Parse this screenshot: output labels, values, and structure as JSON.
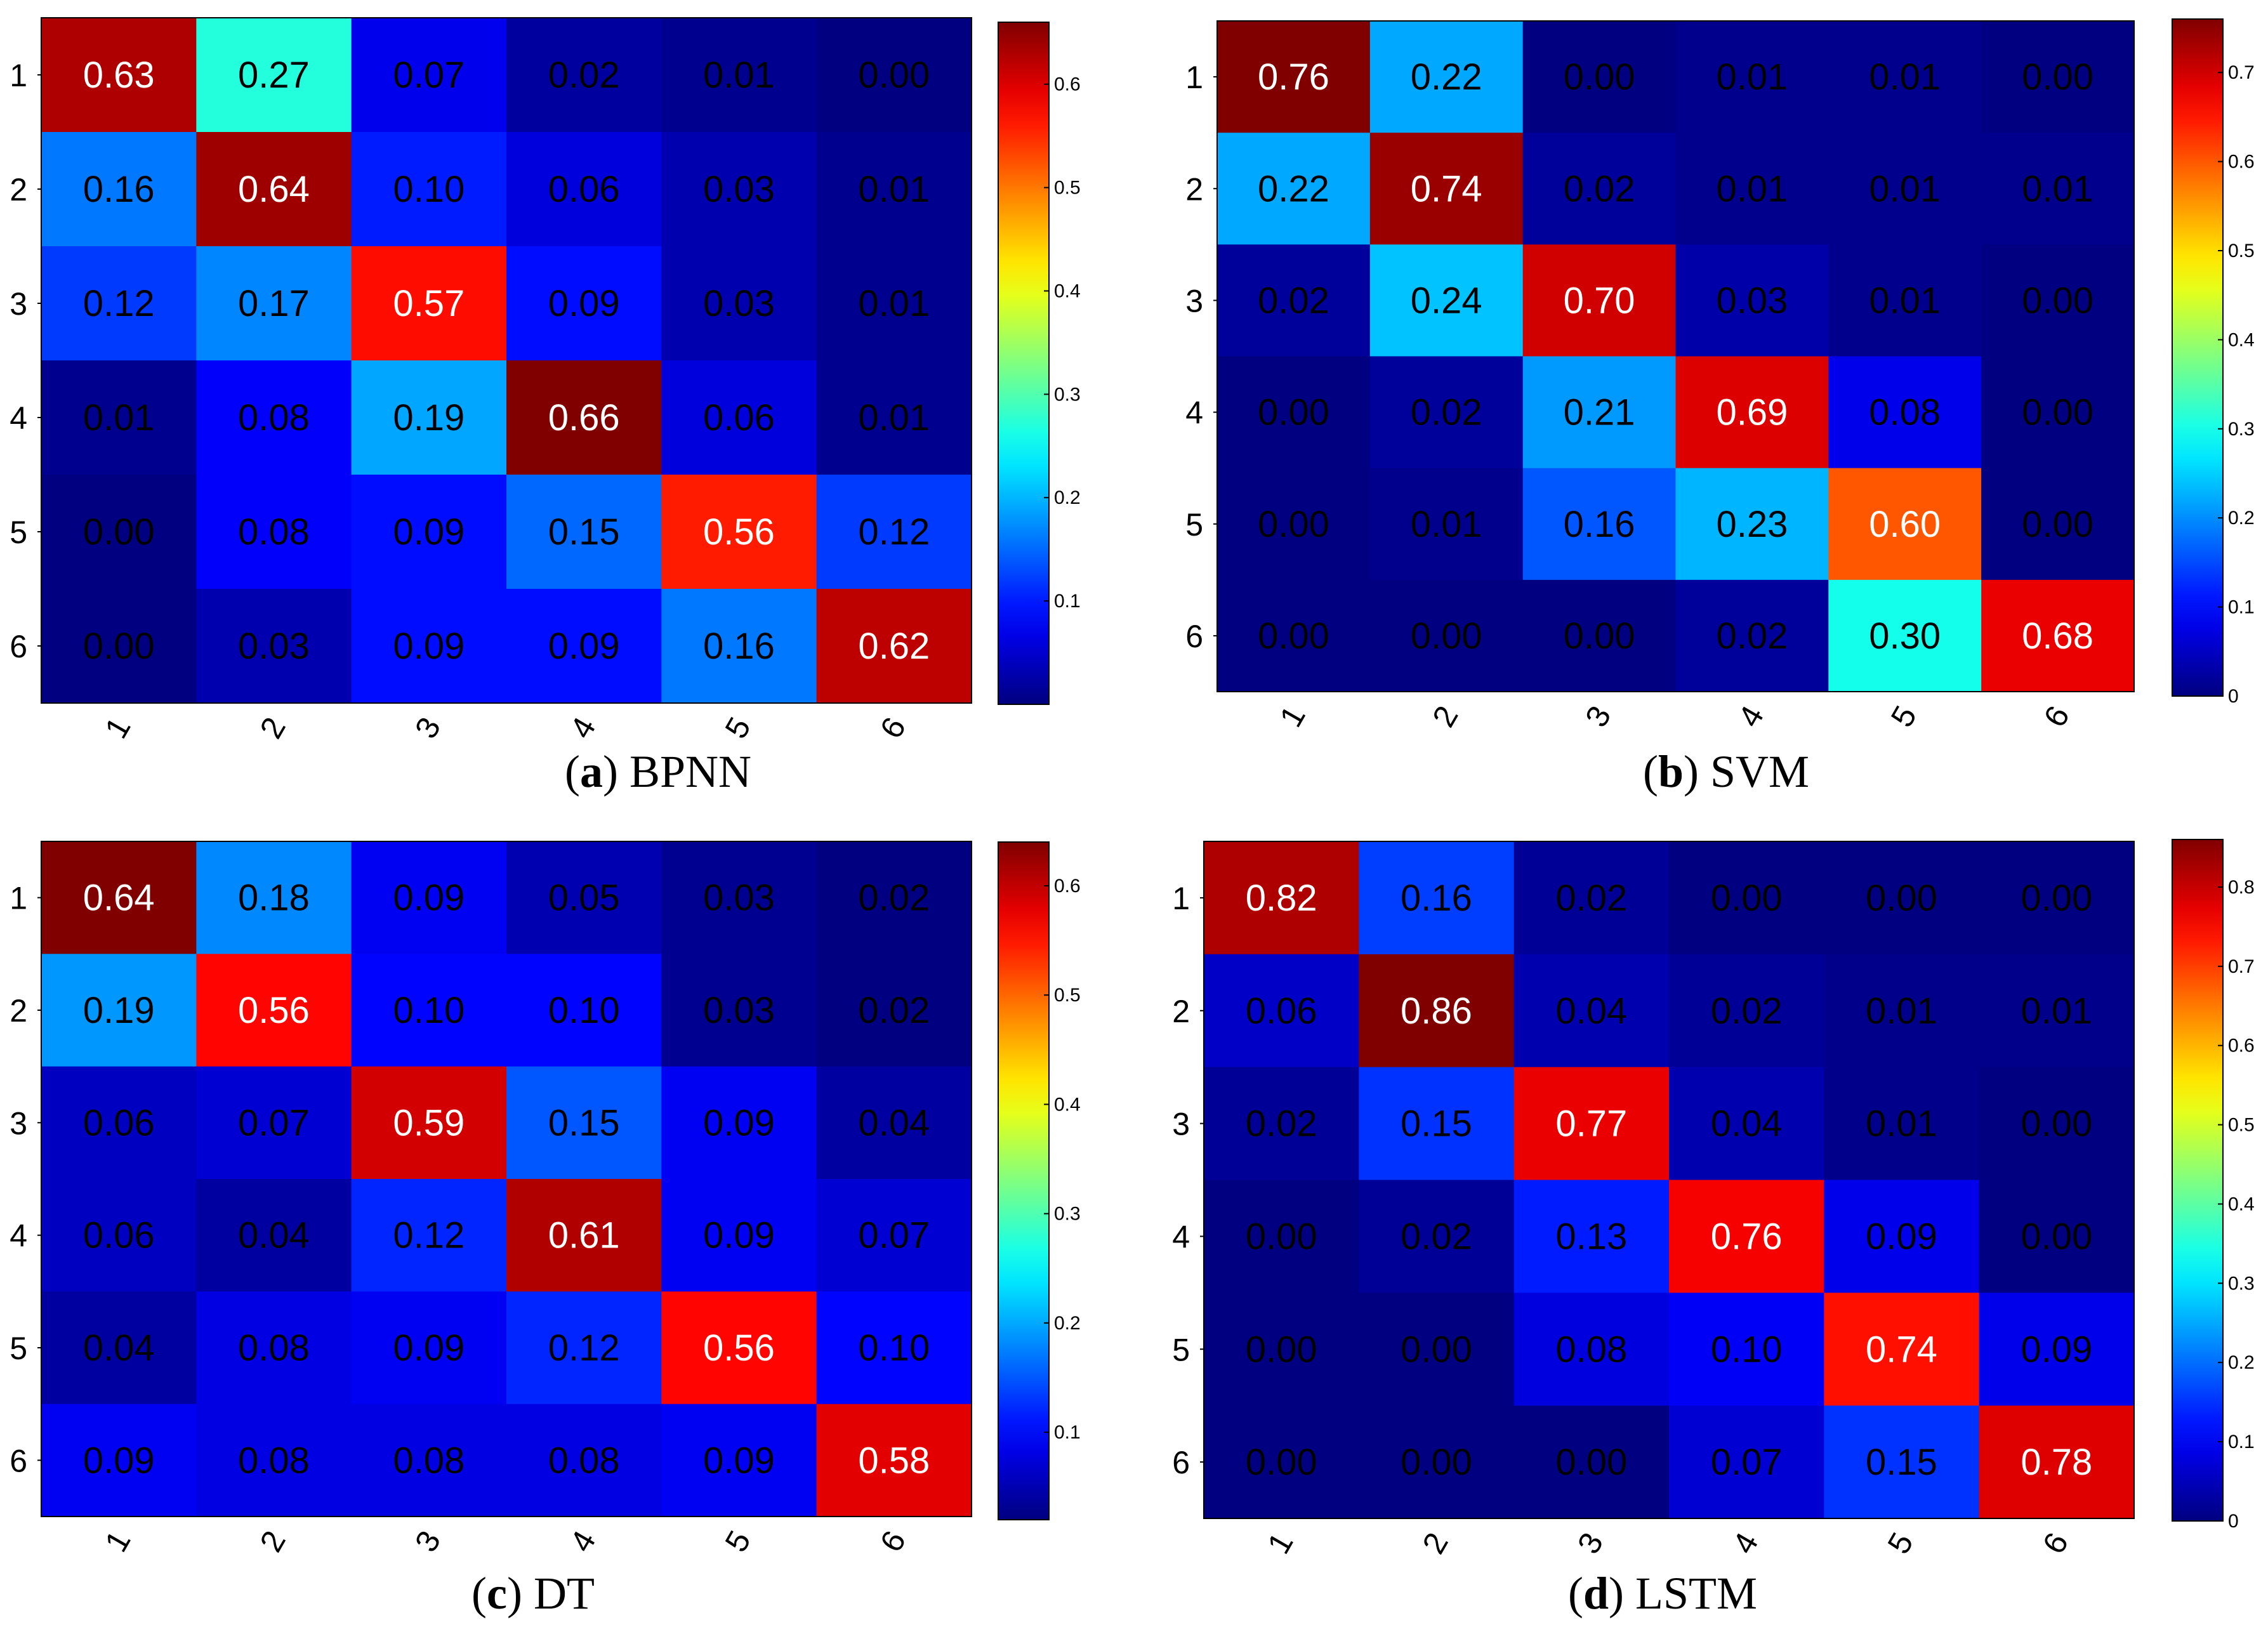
{
  "chart_data": [
    {
      "type": "heatmap",
      "title": "BPNN",
      "caption": {
        "letter": "a",
        "label": "BPNN"
      },
      "row_labels": [
        "1",
        "2",
        "3",
        "4",
        "5",
        "6"
      ],
      "col_labels": [
        "1",
        "2",
        "3",
        "4",
        "5",
        "6"
      ],
      "values": [
        [
          0.63,
          0.27,
          0.07,
          0.02,
          0.01,
          0.0
        ],
        [
          0.16,
          0.64,
          0.1,
          0.06,
          0.03,
          0.01
        ],
        [
          0.12,
          0.17,
          0.57,
          0.09,
          0.03,
          0.01
        ],
        [
          0.01,
          0.08,
          0.19,
          0.66,
          0.06,
          0.01
        ],
        [
          0.0,
          0.08,
          0.09,
          0.15,
          0.56,
          0.12
        ],
        [
          0.0,
          0.03,
          0.09,
          0.09,
          0.16,
          0.62
        ]
      ],
      "colorbar": {
        "min": 0,
        "max": 0.66,
        "ticks": [
          "0.1",
          "0.2",
          "0.3",
          "0.4",
          "0.5",
          "0.6"
        ]
      }
    },
    {
      "type": "heatmap",
      "title": "SVM",
      "caption": {
        "letter": "b",
        "label": "SVM"
      },
      "row_labels": [
        "1",
        "2",
        "3",
        "4",
        "5",
        "6"
      ],
      "col_labels": [
        "1",
        "2",
        "3",
        "4",
        "5",
        "6"
      ],
      "values": [
        [
          0.76,
          0.22,
          0.0,
          0.01,
          0.01,
          0.0
        ],
        [
          0.22,
          0.74,
          0.02,
          0.01,
          0.01,
          0.01
        ],
        [
          0.02,
          0.24,
          0.7,
          0.03,
          0.01,
          0.0
        ],
        [
          0.0,
          0.02,
          0.21,
          0.69,
          0.08,
          0.0
        ],
        [
          0.0,
          0.01,
          0.16,
          0.23,
          0.6,
          0.0
        ],
        [
          0.0,
          0.0,
          0.0,
          0.02,
          0.3,
          0.68
        ]
      ],
      "colorbar": {
        "min": 0,
        "max": 0.76,
        "ticks": [
          "0",
          "0.1",
          "0.2",
          "0.3",
          "0.4",
          "0.5",
          "0.6",
          "0.7"
        ]
      }
    },
    {
      "type": "heatmap",
      "title": "DT",
      "caption": {
        "letter": "c",
        "label": "DT"
      },
      "row_labels": [
        "1",
        "2",
        "3",
        "4",
        "5",
        "6"
      ],
      "col_labels": [
        "1",
        "2",
        "3",
        "4",
        "5",
        "6"
      ],
      "values": [
        [
          0.64,
          0.18,
          0.09,
          0.05,
          0.03,
          0.02
        ],
        [
          0.19,
          0.56,
          0.1,
          0.1,
          0.03,
          0.02
        ],
        [
          0.06,
          0.07,
          0.59,
          0.15,
          0.09,
          0.04
        ],
        [
          0.06,
          0.04,
          0.12,
          0.61,
          0.09,
          0.07
        ],
        [
          0.04,
          0.08,
          0.09,
          0.12,
          0.56,
          0.1
        ],
        [
          0.09,
          0.08,
          0.08,
          0.08,
          0.09,
          0.58
        ]
      ],
      "colorbar": {
        "min": 0.02,
        "max": 0.64,
        "ticks": [
          "0.1",
          "0.2",
          "0.3",
          "0.4",
          "0.5",
          "0.6"
        ]
      }
    },
    {
      "type": "heatmap",
      "title": "LSTM",
      "caption": {
        "letter": "d",
        "label": "LSTM"
      },
      "row_labels": [
        "1",
        "2",
        "3",
        "4",
        "5",
        "6"
      ],
      "col_labels": [
        "1",
        "2",
        "3",
        "4",
        "5",
        "6"
      ],
      "values": [
        [
          0.82,
          0.16,
          0.02,
          0.0,
          0.0,
          0.0
        ],
        [
          0.06,
          0.86,
          0.04,
          0.02,
          0.01,
          0.01
        ],
        [
          0.02,
          0.15,
          0.77,
          0.04,
          0.01,
          0.0
        ],
        [
          0.0,
          0.02,
          0.13,
          0.76,
          0.09,
          0.0
        ],
        [
          0.0,
          0.0,
          0.08,
          0.1,
          0.74,
          0.09
        ],
        [
          0.0,
          0.0,
          0.0,
          0.07,
          0.15,
          0.78
        ]
      ],
      "colorbar": {
        "min": 0,
        "max": 0.86,
        "ticks": [
          "0",
          "0.1",
          "0.2",
          "0.3",
          "0.4",
          "0.5",
          "0.6",
          "0.7",
          "0.8"
        ]
      }
    }
  ]
}
